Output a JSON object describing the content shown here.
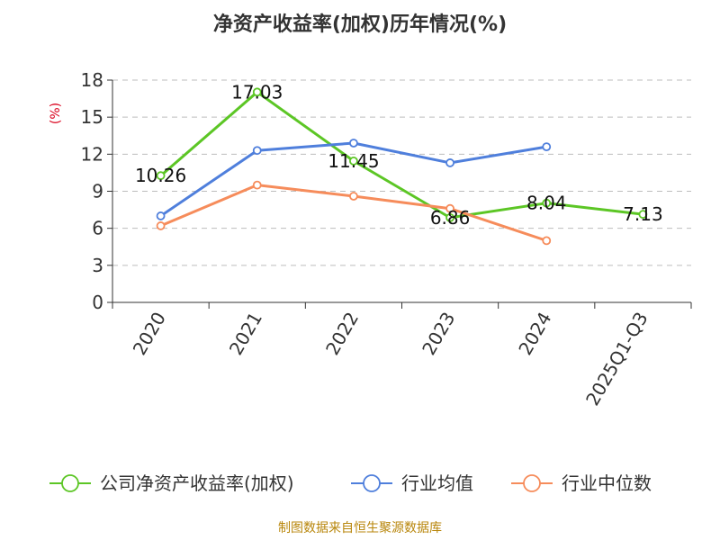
{
  "chart_data": {
    "type": "line",
    "title": "净资产收益率(加权)历年情况(%)",
    "ylabel": "(%)",
    "ylim": [
      0,
      18
    ],
    "yticks": [
      0,
      3,
      6,
      9,
      12,
      15,
      18
    ],
    "grid": true,
    "legend_position": "bottom",
    "categories": [
      "2020",
      "2021",
      "2022",
      "2023",
      "2024",
      "2025Q1-Q3"
    ],
    "series": [
      {
        "name": "公司净资产收益率(加权)",
        "color": "#5cc625",
        "values": [
          10.26,
          17.03,
          11.45,
          6.86,
          8.04,
          7.13
        ],
        "labels": [
          "10.26",
          "17.03",
          "11.45",
          "6.86",
          "8.04",
          "7.13"
        ]
      },
      {
        "name": "行业均值",
        "color": "#4f7fdc",
        "values": [
          7.0,
          12.3,
          12.9,
          11.3,
          12.6,
          null
        ]
      },
      {
        "name": "行业中位数",
        "color": "#f68c5b",
        "values": [
          6.2,
          9.5,
          8.6,
          7.6,
          5.0,
          null
        ]
      }
    ]
  },
  "source": "制图数据来自恒生聚源数据库"
}
